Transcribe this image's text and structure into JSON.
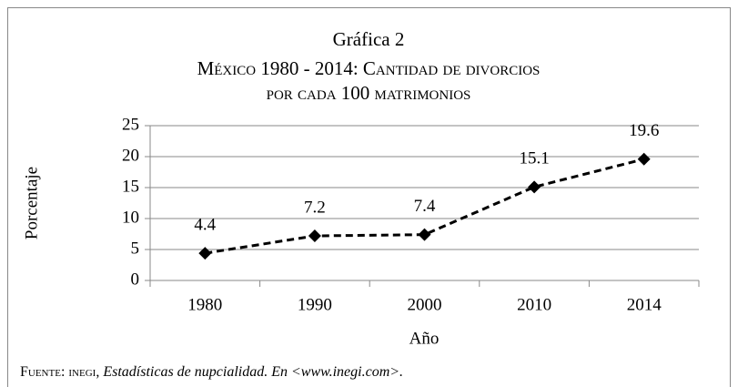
{
  "chart_data": {
    "type": "line",
    "title": "Gráfica 2",
    "subtitle": [
      "México 1980 - 2014: Cantidad de divorcios",
      "por cada 100 matrimonios"
    ],
    "categories": [
      "1980",
      "1990",
      "2000",
      "2010",
      "2014"
    ],
    "series": [
      {
        "name": "Porcentaje",
        "color": "#000000",
        "values": [
          4.4,
          7.2,
          7.4,
          15.1,
          19.6
        ]
      }
    ],
    "ylim": [
      0,
      25
    ],
    "yticks": [
      0,
      5,
      10,
      15,
      20,
      25
    ],
    "grid": true,
    "ylabel": "Porcentaje",
    "xlabel": "Año",
    "source_label": "Fuente: inegi,",
    "source_text": "Estadísticas de nupcialidad. En <www.inegi.com>."
  }
}
